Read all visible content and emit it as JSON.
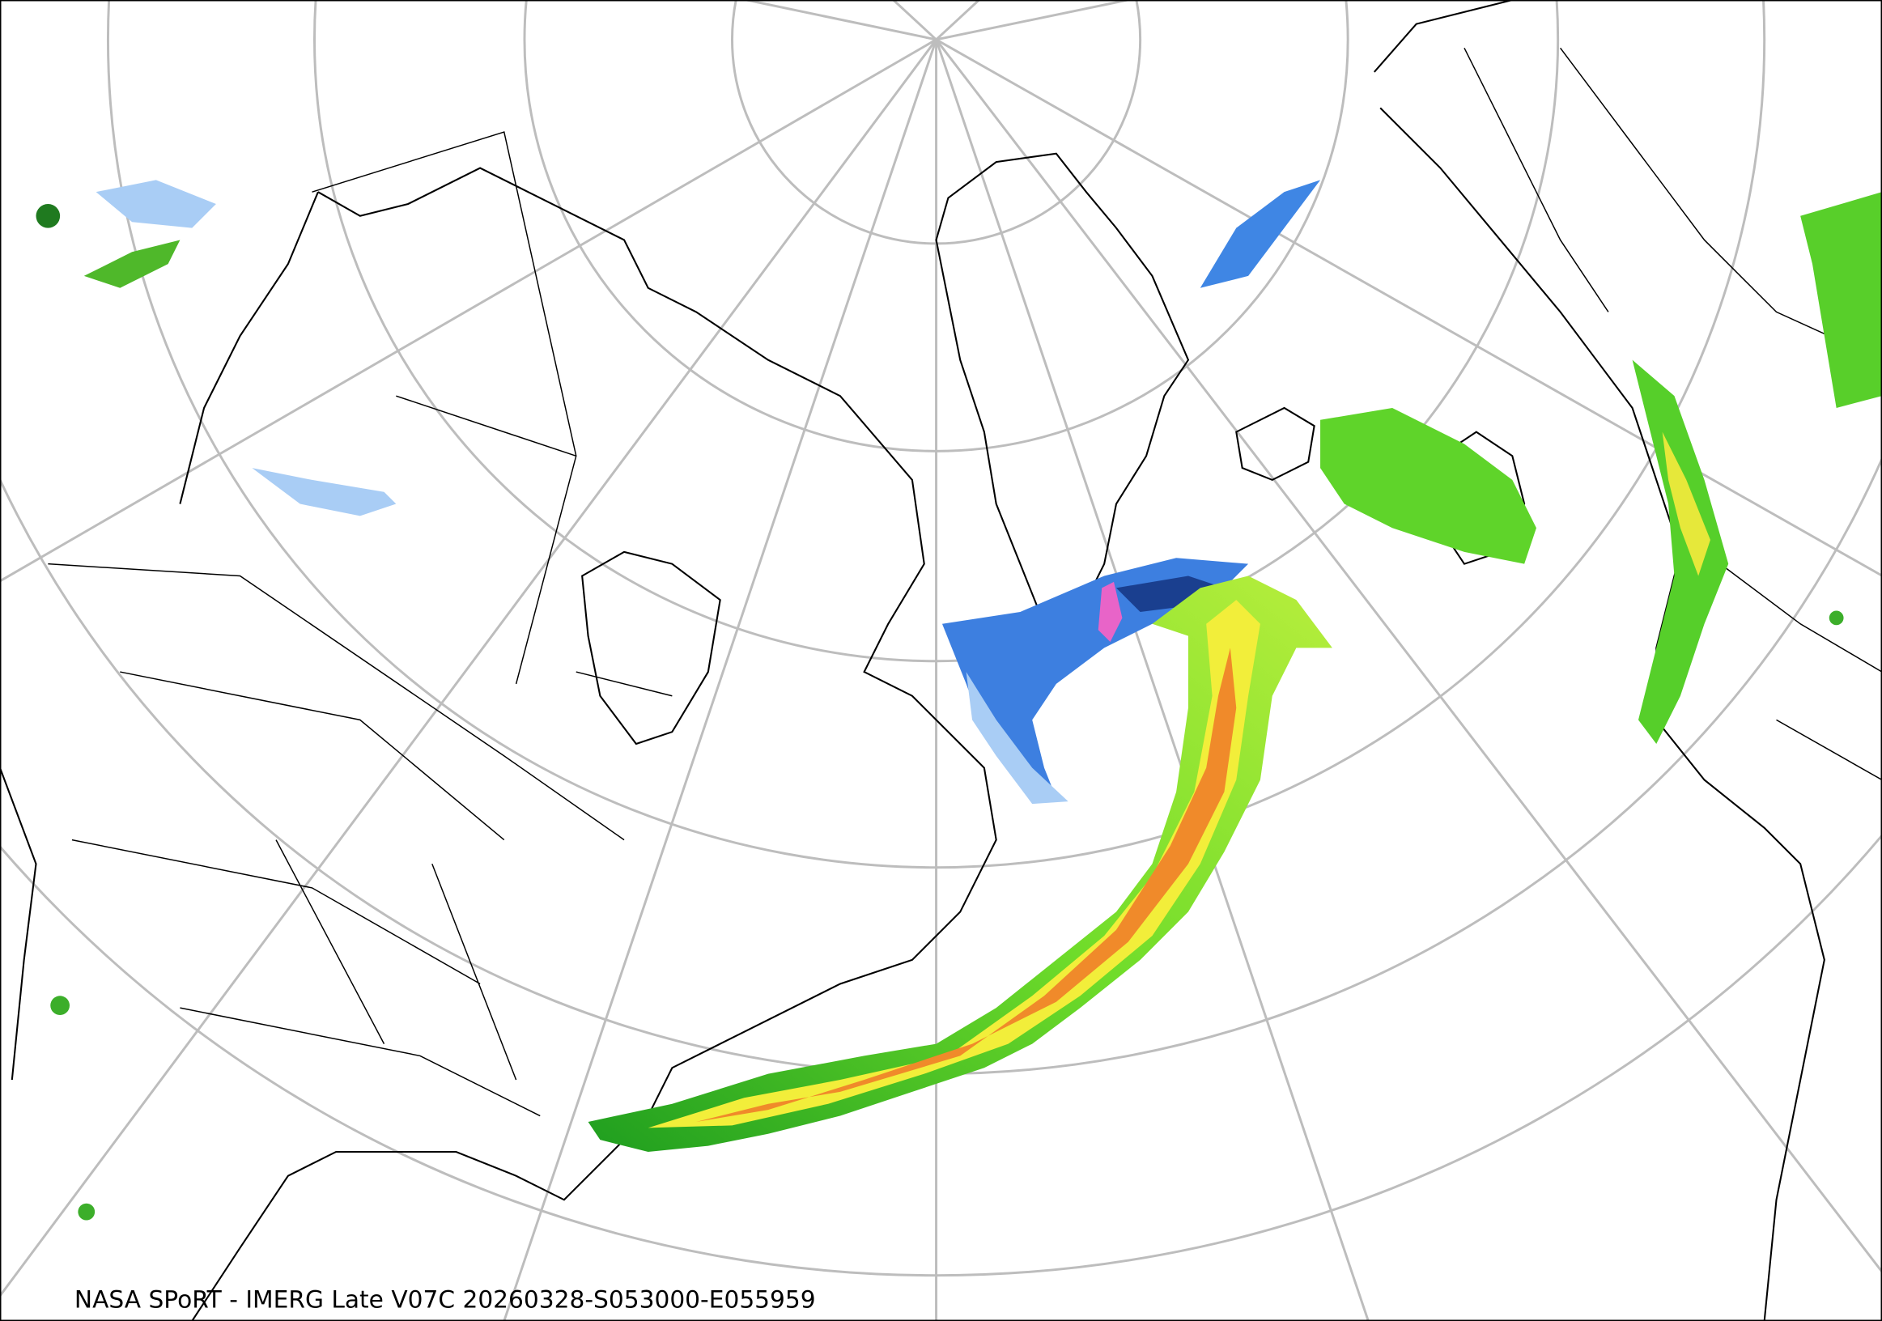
{
  "caption": "NASA SPoRT - IMERG Late V07C 20260328-S053000-E055959"
}
